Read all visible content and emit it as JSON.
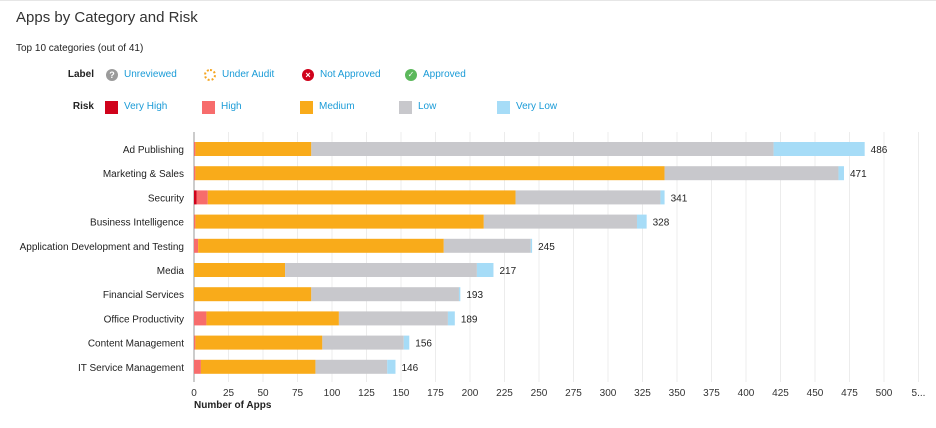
{
  "header": {
    "title": "Apps by Category and Risk",
    "subtitle": "Top 10 categories (out of 41)"
  },
  "legend": {
    "label_heading": "Label",
    "labels": [
      {
        "name": "Unreviewed",
        "icon": "question-circle-icon",
        "color": "#9b9b9b"
      },
      {
        "name": "Under Audit",
        "icon": "dotted-circle-icon",
        "color": "#f5a623"
      },
      {
        "name": "Not Approved",
        "icon": "x-circle-icon",
        "color": "#d0021b"
      },
      {
        "name": "Approved",
        "icon": "check-circle-icon",
        "color": "#5cb85c"
      }
    ],
    "risk_heading": "Risk",
    "risks": [
      {
        "name": "Very High",
        "color": "#d0021b"
      },
      {
        "name": "High",
        "color": "#f76c6c"
      },
      {
        "name": "Medium",
        "color": "#f9ab1a"
      },
      {
        "name": "Low",
        "color": "#c8c8cc"
      },
      {
        "name": "Very Low",
        "color": "#a6dcf7"
      }
    ]
  },
  "chart_data": {
    "type": "bar",
    "orientation": "horizontal",
    "stacked": true,
    "xlabel": "Number of Apps",
    "xlim": [
      0,
      525
    ],
    "xticks": [
      "0",
      "25",
      "50",
      "75",
      "100",
      "125",
      "150",
      "175",
      "200",
      "225",
      "250",
      "275",
      "300",
      "325",
      "350",
      "375",
      "400",
      "425",
      "450",
      "475",
      "500",
      "5..."
    ],
    "grid": "vertical",
    "categories": [
      "Ad Publishing",
      "Marketing & Sales",
      "Security",
      "Business Intelligence",
      "Application Development and Testing",
      "Media",
      "Financial Services",
      "Office Productivity",
      "Content Management",
      "IT Service Management"
    ],
    "totals": [
      486,
      471,
      341,
      328,
      245,
      217,
      193,
      189,
      156,
      146
    ],
    "series": [
      {
        "name": "Very High",
        "color": "#d0021b",
        "values": [
          0,
          0,
          2,
          0,
          0,
          0,
          0,
          0,
          0,
          0
        ]
      },
      {
        "name": "High",
        "color": "#f76c6c",
        "values": [
          1,
          1,
          8,
          1,
          3,
          0,
          0,
          9,
          1,
          5
        ]
      },
      {
        "name": "Medium",
        "color": "#f9ab1a",
        "values": [
          84,
          340,
          223,
          209,
          178,
          66,
          85,
          96,
          92,
          83
        ]
      },
      {
        "name": "Low",
        "color": "#c8c8cc",
        "values": [
          335,
          126,
          105,
          111,
          63,
          139,
          107,
          79,
          59,
          52
        ]
      },
      {
        "name": "Very Low",
        "color": "#a6dcf7",
        "values": [
          66,
          4,
          3,
          7,
          1,
          12,
          1,
          5,
          4,
          6
        ]
      }
    ]
  }
}
